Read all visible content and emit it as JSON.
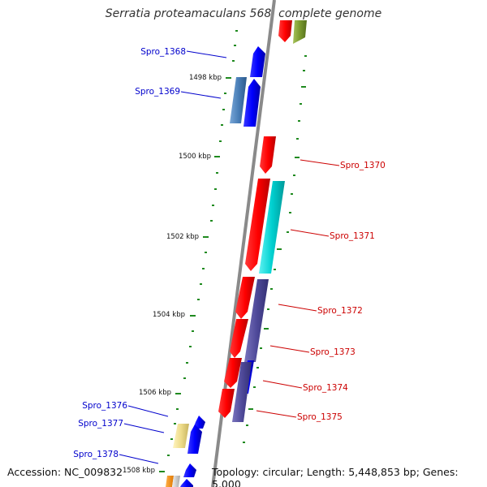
{
  "title": "Serratia proteamaculans 568, complete genome",
  "footer": {
    "accession": "Accession: NC_009832",
    "topology": "Topology: circular; Length: 5,448,853 bp; Genes: 5,000"
  },
  "scale_labels": [
    "1498 kbp",
    "1500 kbp",
    "1502 kbp",
    "1504 kbp",
    "1506 kbp",
    "1508 kbp"
  ],
  "left_genes": [
    "Spro_1368",
    "Spro_1369",
    "Spro_1376",
    "Spro_1377",
    "Spro_1378"
  ],
  "right_genes": [
    "Spro_1370",
    "Spro_1371",
    "Spro_1372",
    "Spro_1373",
    "Spro_1374",
    "Spro_1375"
  ],
  "colors": {
    "backbone": "#8a8a8a",
    "forward_label": "#cc0000",
    "reverse_label": "#0000cc",
    "tick": "#1f8a1f"
  }
}
